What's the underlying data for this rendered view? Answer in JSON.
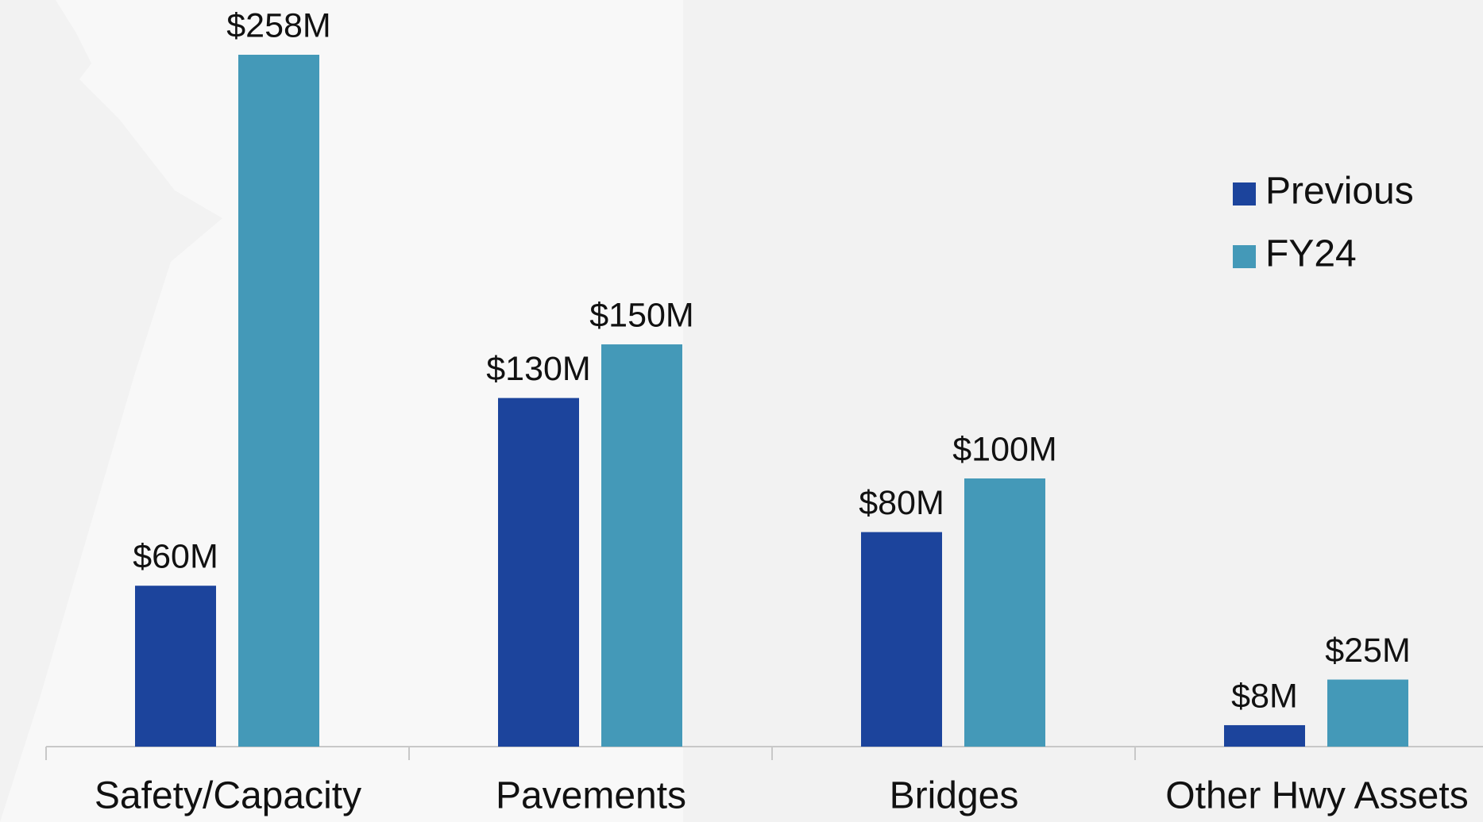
{
  "chart_data": {
    "type": "bar",
    "categories": [
      "Safety/Capacity",
      "Pavements",
      "Bridges",
      "Other Hwy Assets"
    ],
    "series": [
      {
        "name": "Previous",
        "color": "#1c449c",
        "values": [
          60,
          130,
          80,
          8
        ],
        "value_labels": [
          "$60M",
          "$130M",
          "$80M",
          "$8M"
        ]
      },
      {
        "name": "FY24",
        "color": "#4499b8",
        "values": [
          258,
          150,
          100,
          25
        ],
        "value_labels": [
          "$258M",
          "$150M",
          "$100M",
          "$25M"
        ]
      }
    ],
    "legend": "upper right"
  }
}
